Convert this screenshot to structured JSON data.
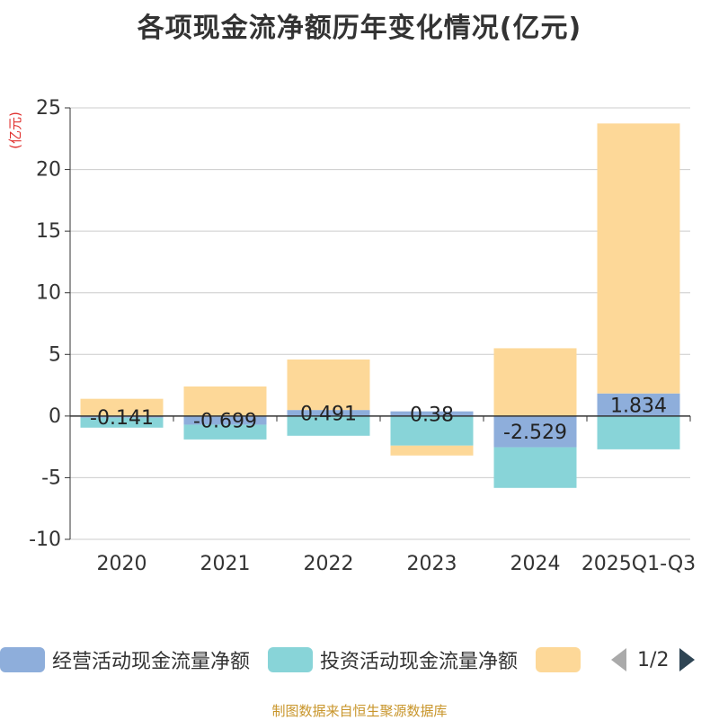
{
  "chart_data": {
    "type": "bar",
    "stacked": true,
    "title": "各项现金流净额历年变化情况(亿元)",
    "ylabel": "(亿元)",
    "ylim": [
      -10,
      25
    ],
    "yticks": [
      25,
      20,
      15,
      10,
      5,
      0,
      -5,
      -10
    ],
    "categories": [
      "2020",
      "2021",
      "2022",
      "2023",
      "2024",
      "2025Q1-Q3"
    ],
    "series": [
      {
        "name": "经营活动现金流量净额",
        "color": "#8eaedb",
        "values": [
          -0.141,
          -0.699,
          0.491,
          0.38,
          -2.529,
          1.834
        ]
      },
      {
        "name": "投资活动现金流量净额",
        "color": "#88d4d8",
        "values": [
          -0.8,
          -1.2,
          -1.6,
          -2.4,
          -3.3,
          -2.7
        ]
      },
      {
        "name": "",
        "color": "#fdd898",
        "values": [
          1.4,
          2.4,
          4.1,
          -0.8,
          5.5,
          21.9
        ]
      }
    ],
    "data_labels": [
      "-0.141",
      "-0.699",
      "0.491",
      "0.38",
      "-2.529",
      "1.834"
    ]
  },
  "legend": {
    "item1": "经营活动现金流量净额",
    "item2": "投资活动现金流量净额",
    "item3": "",
    "page": "1/2"
  },
  "footer": "制图数据来自恒生聚源数据库"
}
